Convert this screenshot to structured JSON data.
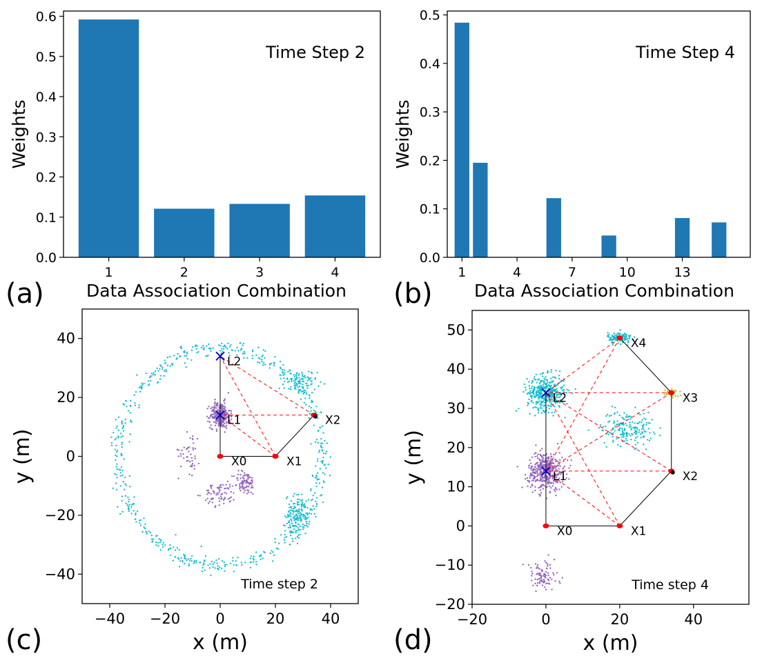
{
  "panel_labels": {
    "a": "(a)",
    "b": "(b)",
    "c": "(c)",
    "d": "(d)"
  },
  "colors": {
    "bar": "#1f77b4",
    "cyan": "#17becf",
    "purple": "#9467bd",
    "red": "#ff0000",
    "blue_x": "#0000cc",
    "black": "#000000",
    "yellow": "#bcbd22"
  },
  "chart_data": [
    {
      "id": "a",
      "type": "bar",
      "annotation": "Time Step 2",
      "xlabel": "Data Association Combination",
      "ylabel": "Weights",
      "categories": [
        "1",
        "2",
        "3",
        "4"
      ],
      "values": [
        0.592,
        0.121,
        0.133,
        0.154
      ],
      "xticks": [
        "1",
        "2",
        "3",
        "4"
      ],
      "yticks": [
        "0.0",
        "0.1",
        "0.2",
        "0.3",
        "0.4",
        "0.5",
        "0.6"
      ],
      "ylim": [
        0,
        0.613
      ],
      "grid": false
    },
    {
      "id": "b",
      "type": "bar",
      "annotation": "Time Step 4",
      "xlabel": "Data Association Combination",
      "ylabel": "Weights",
      "x": [
        1,
        2,
        3,
        4,
        5,
        6,
        7,
        8,
        9,
        10,
        11,
        12,
        13,
        14,
        15
      ],
      "values": [
        0.484,
        0.195,
        0,
        0,
        0,
        0.122,
        0,
        0,
        0.045,
        0,
        0,
        0,
        0.081,
        0,
        0.072
      ],
      "xticks": [
        "1",
        "4",
        "7",
        "10",
        "13"
      ],
      "yticks": [
        "0.0",
        "0.1",
        "0.2",
        "0.3",
        "0.4",
        "0.5"
      ],
      "ylim": [
        0,
        0.508
      ],
      "grid": false
    },
    {
      "id": "c",
      "type": "scatter",
      "annotation": "Time step 2",
      "xlabel": "x (m)",
      "ylabel": "y (m)",
      "xlim": [
        -50,
        50
      ],
      "ylim": [
        -50,
        50
      ],
      "xticks": [
        "−40",
        "−20",
        "0",
        "20",
        "40"
      ],
      "yticks": [
        "−40",
        "−20",
        "0",
        "20",
        "40"
      ],
      "landmarks": [
        {
          "name": "L1",
          "x": 0,
          "y": 14
        },
        {
          "name": "L2",
          "x": 0,
          "y": 34
        }
      ],
      "poses": [
        {
          "name": "X0",
          "x": 0,
          "y": 0
        },
        {
          "name": "X1",
          "x": 20,
          "y": 0
        },
        {
          "name": "X2",
          "x": 34,
          "y": 14
        }
      ],
      "grid": false
    },
    {
      "id": "d",
      "type": "scatter",
      "annotation": "Time step 4",
      "xlabel": "x (m)",
      "ylabel": "y (m)",
      "xlim": [
        -20,
        55
      ],
      "ylim": [
        -20,
        55
      ],
      "xticks": [
        "−20",
        "0",
        "20",
        "40"
      ],
      "yticks": [
        "−20",
        "−10",
        "0",
        "10",
        "20",
        "30",
        "40",
        "50"
      ],
      "landmarks": [
        {
          "name": "L1",
          "x": 0,
          "y": 14
        },
        {
          "name": "L2",
          "x": 0,
          "y": 34
        }
      ],
      "poses": [
        {
          "name": "X0",
          "x": 0,
          "y": 0
        },
        {
          "name": "X1",
          "x": 20,
          "y": 0
        },
        {
          "name": "X2",
          "x": 34,
          "y": 14
        },
        {
          "name": "X3",
          "x": 34,
          "y": 34
        },
        {
          "name": "X4",
          "x": 20,
          "y": 48
        }
      ],
      "grid": false
    }
  ]
}
